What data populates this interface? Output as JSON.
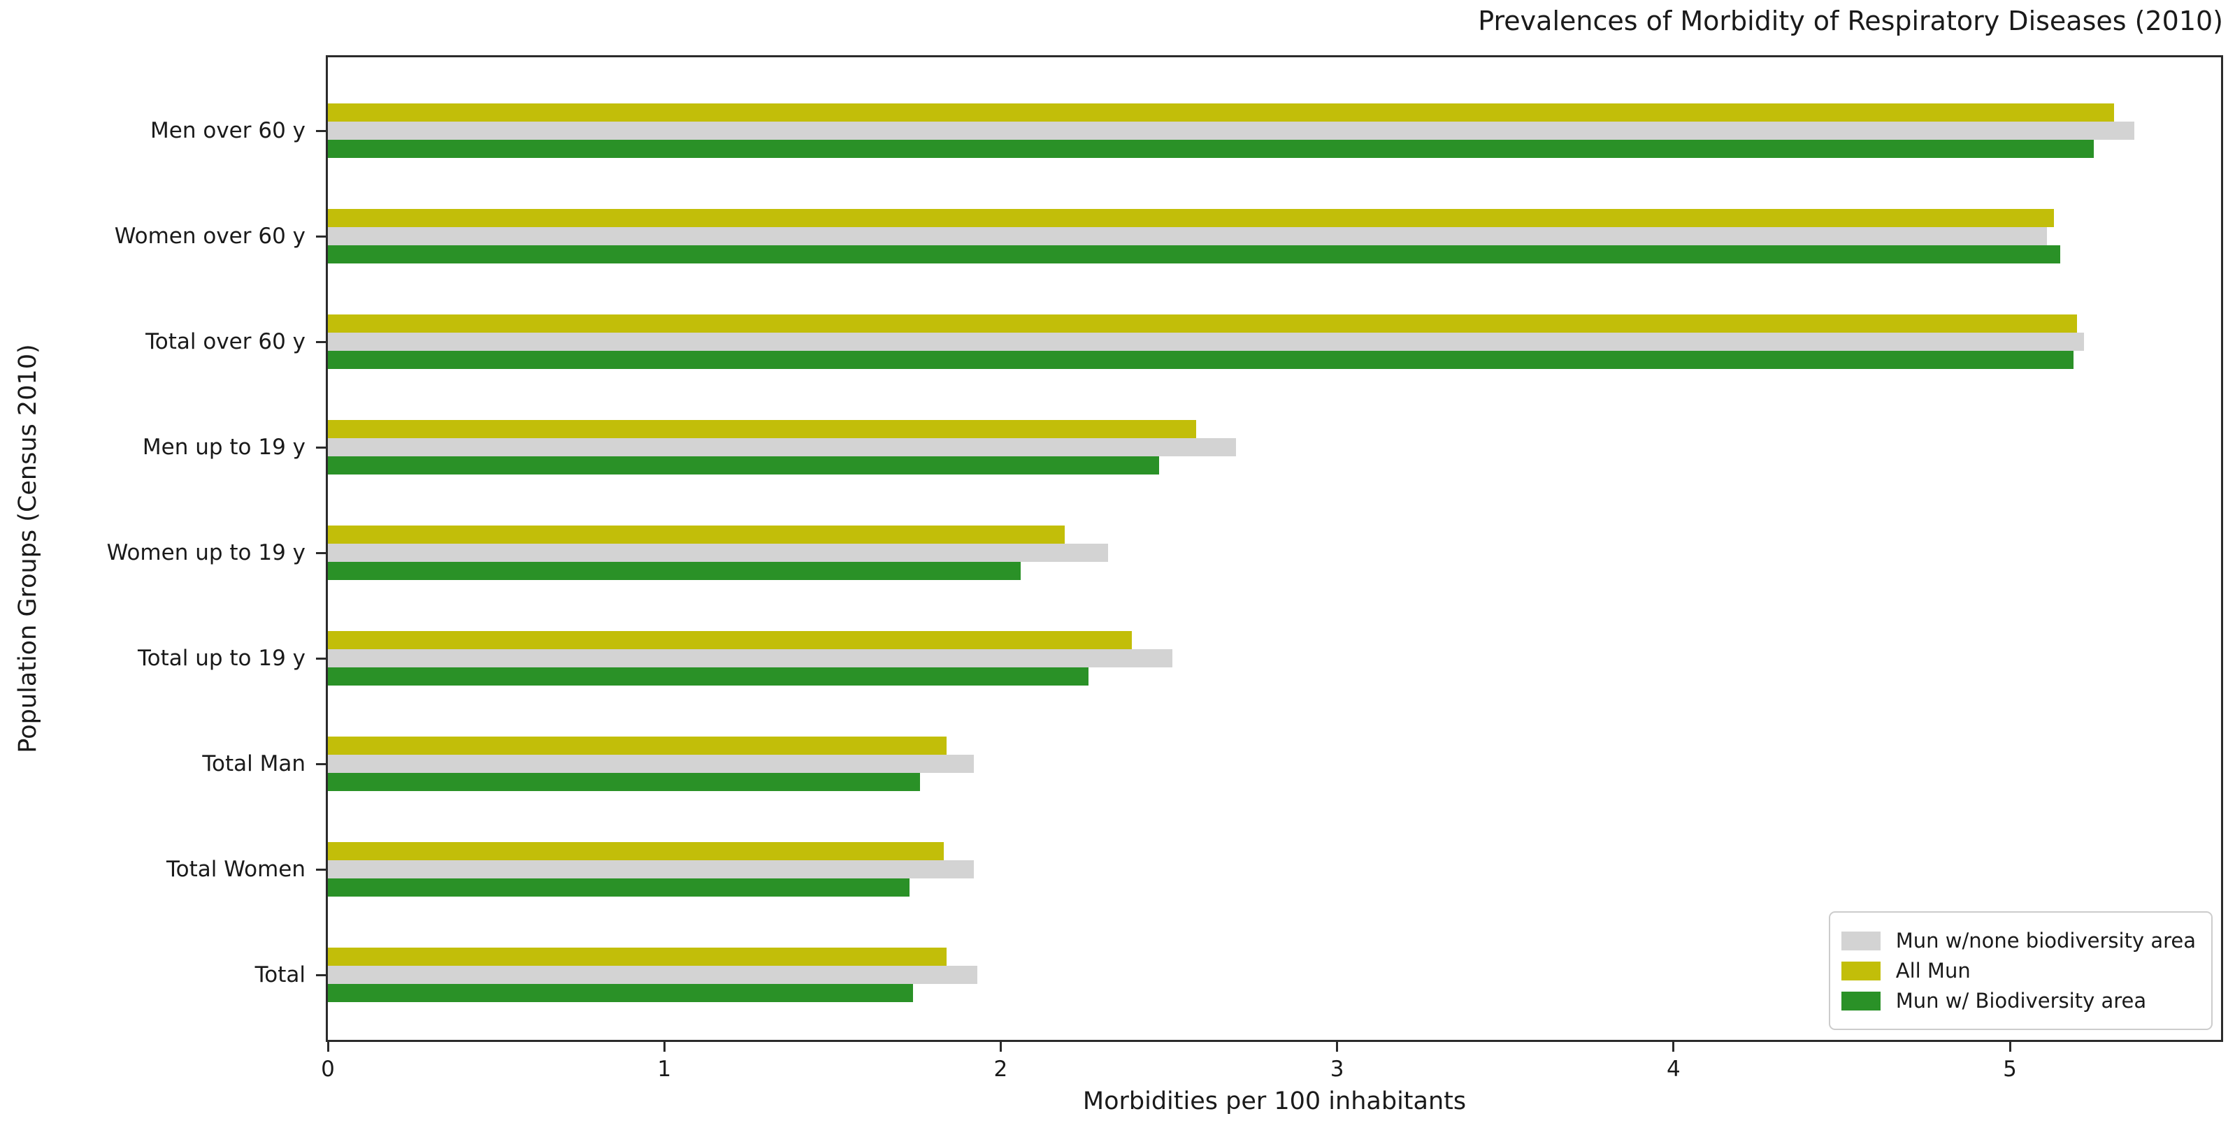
{
  "chart_data": {
    "type": "bar",
    "orientation": "horizontal",
    "title": "Prevalences of Morbidity of Respiratory Diseases (2010)",
    "xlabel": "Morbidities per 100 inhabitants",
    "ylabel": "Population Groups (Census 2010)",
    "categories": [
      "Men over 60 y",
      "Women over 60 y",
      "Total over 60 y",
      "Men up to 19 y",
      "Women up to 19 y",
      "Total up to 19 y",
      "Total Man",
      "Total Women",
      "Total"
    ],
    "series": [
      {
        "name": "All Mun",
        "color": "#c2be09",
        "values": [
          5.31,
          5.13,
          5.2,
          2.58,
          2.19,
          2.39,
          1.84,
          1.83,
          1.84
        ]
      },
      {
        "name": "Mun w/none biodiversity area",
        "color": "#d3d3d3",
        "values": [
          5.37,
          5.11,
          5.22,
          2.7,
          2.32,
          2.51,
          1.92,
          1.92,
          1.93
        ]
      },
      {
        "name": "Mun w/ Biodiversity area",
        "color": "#2a9127",
        "values": [
          5.25,
          5.15,
          5.19,
          2.47,
          2.06,
          2.26,
          1.76,
          1.73,
          1.74
        ]
      }
    ],
    "bar_row_order_top_to_bottom": [
      "All Mun",
      "Mun w/none biodiversity area",
      "Mun w/ Biodiversity area"
    ],
    "xticks": [
      0,
      1,
      2,
      3,
      4,
      5
    ],
    "xlim": [
      0,
      5.64
    ],
    "grid": false,
    "legend": {
      "position": "lower right",
      "entries": [
        "Mun w/none biodiversity area",
        "All Mun",
        "Mun w/ Biodiversity area"
      ]
    }
  }
}
